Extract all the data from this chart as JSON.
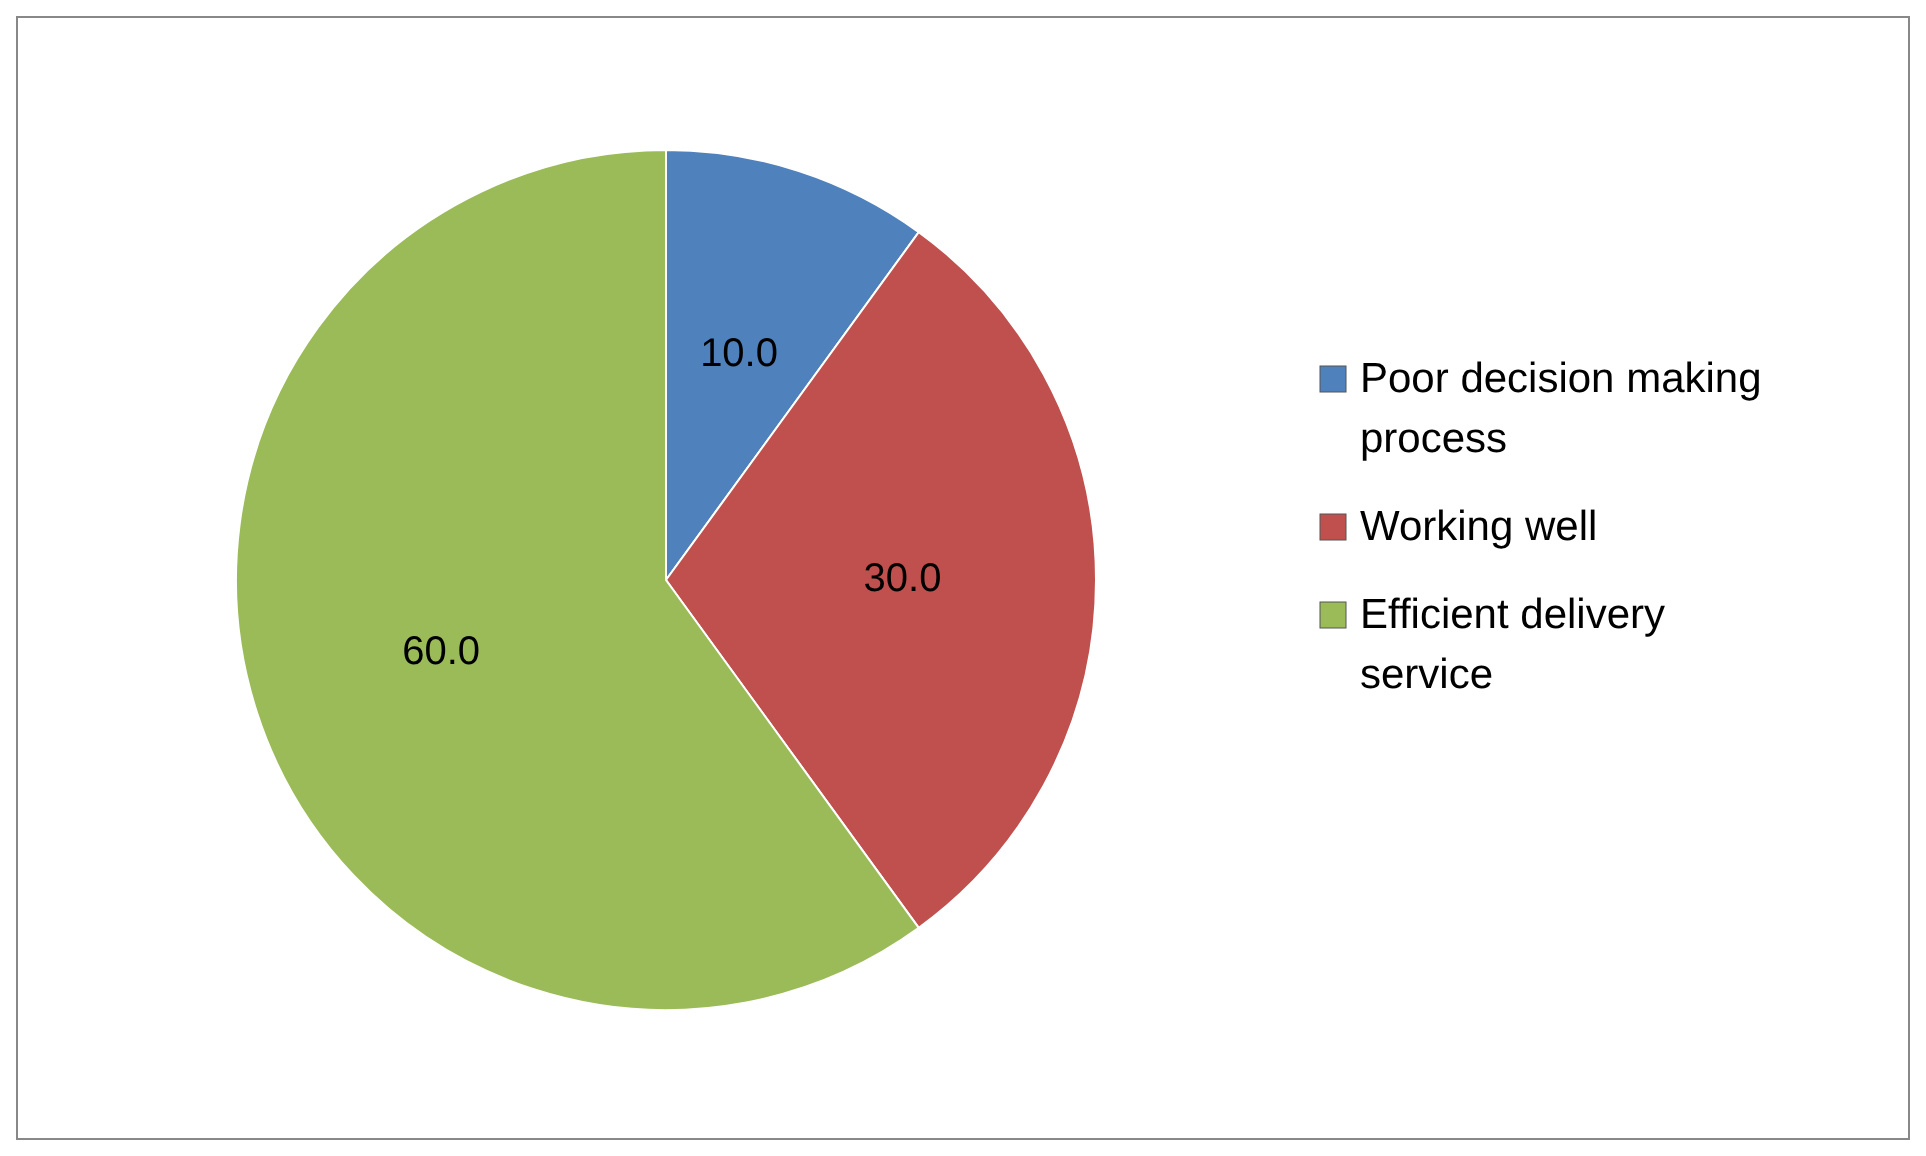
{
  "chart_data": {
    "type": "pie",
    "categories": [
      "Poor decision making process",
      "Working well",
      "Efficient delivery service"
    ],
    "values": [
      10,
      30,
      60
    ],
    "colors": [
      "#4f81bd",
      "#c0504d",
      "#9bbb59"
    ],
    "value_labels": [
      "10.0",
      "30.0",
      "60.0"
    ],
    "legend": "right"
  }
}
